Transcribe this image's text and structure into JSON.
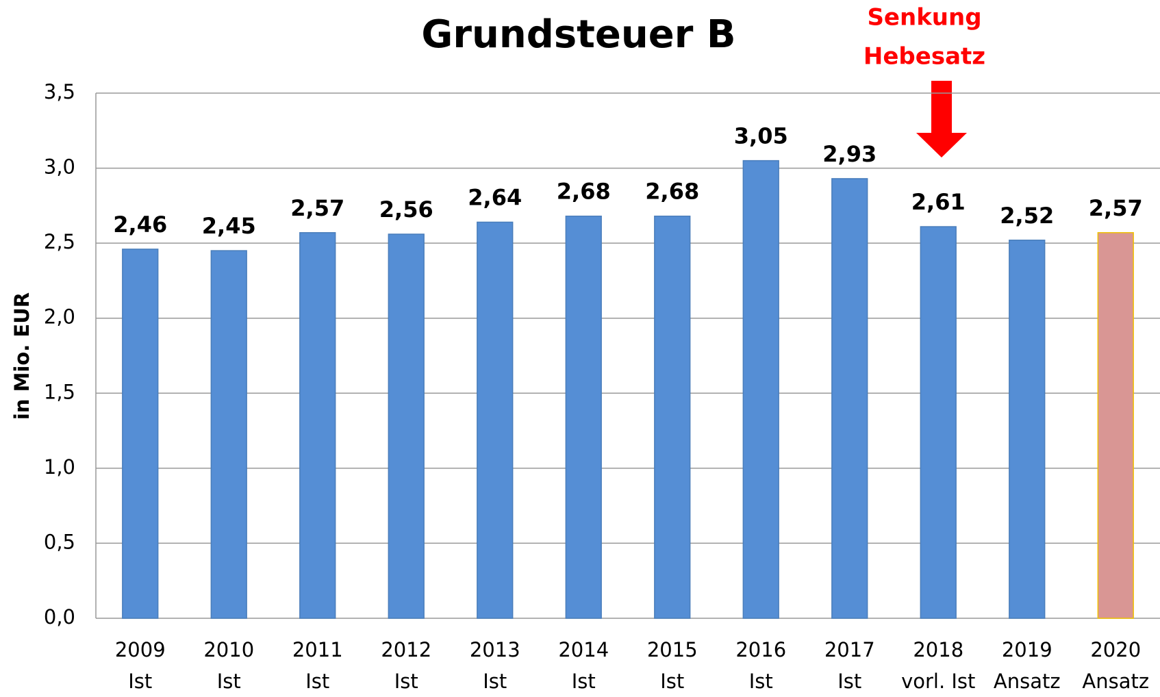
{
  "chart_data": {
    "type": "bar",
    "title": "Grundsteuer B",
    "y_label": "in Mio. EUR",
    "annotation": [
      "Senkung",
      "Hebesatz"
    ],
    "categories": [
      [
        "2009",
        "Ist"
      ],
      [
        "2010",
        "Ist"
      ],
      [
        "2011",
        "Ist"
      ],
      [
        "2012",
        "Ist"
      ],
      [
        "2013",
        "Ist"
      ],
      [
        "2014",
        "Ist"
      ],
      [
        "2015",
        "Ist"
      ],
      [
        "2016",
        "Ist"
      ],
      [
        "2017",
        "Ist"
      ],
      [
        "2018",
        "vorl. Ist"
      ],
      [
        "2019",
        "Ansatz"
      ],
      [
        "2020",
        "Ansatz"
      ]
    ],
    "values": [
      2.46,
      2.45,
      2.57,
      2.56,
      2.64,
      2.68,
      2.68,
      3.05,
      2.93,
      2.61,
      2.52,
      2.57
    ],
    "value_labels": [
      "2,46",
      "2,45",
      "2,57",
      "2,56",
      "2,64",
      "2,68",
      "2,68",
      "3,05",
      "2,93",
      "2,61",
      "2,52",
      "2,57"
    ],
    "colors": [
      "#558ed5",
      "#558ed5",
      "#558ed5",
      "#558ed5",
      "#558ed5",
      "#558ed5",
      "#558ed5",
      "#558ed5",
      "#558ed5",
      "#558ed5",
      "#558ed5",
      "#d99694"
    ],
    "ylim": [
      0,
      3.5
    ],
    "yticks": [
      {
        "value": 0,
        "label": "0,0"
      },
      {
        "value": 0.5,
        "label": "0,5"
      },
      {
        "value": 1,
        "label": "1,0"
      },
      {
        "value": 1.5,
        "label": "1,5"
      },
      {
        "value": 2,
        "label": "2,0"
      },
      {
        "value": 2.5,
        "label": "2,5"
      },
      {
        "value": 3,
        "label": "3,0"
      },
      {
        "value": 3.5,
        "label": "3,5"
      }
    ],
    "grid": true
  }
}
